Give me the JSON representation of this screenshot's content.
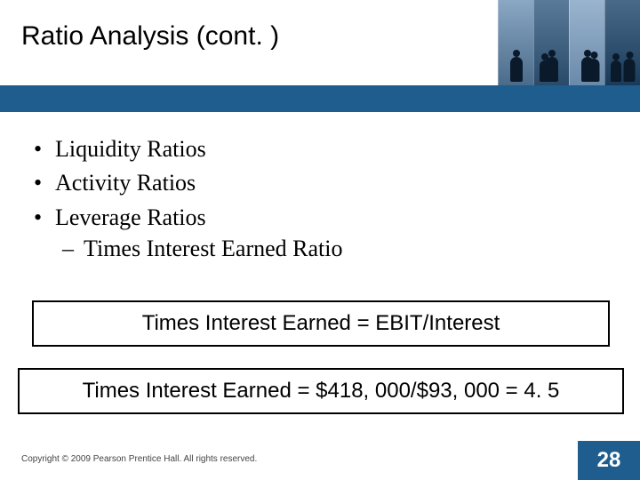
{
  "title": "Ratio Analysis (cont. )",
  "bullets": {
    "item1": "Liquidity Ratios",
    "item2": "Activity Ratios",
    "item3": "Leverage Ratios",
    "sub1": "Times Interest Earned Ratio"
  },
  "formula1": "Times Interest Earned = EBIT/Interest",
  "formula2": "Times Interest Earned = $418, 000/$93, 000  =  4. 5",
  "copyright": "Copyright © 2009 Pearson Prentice Hall. All rights reserved.",
  "page_number": "28",
  "colors": {
    "blue_bar": "#1f5d8f",
    "page_box": "#1f5d8f",
    "background": "#ffffff"
  }
}
